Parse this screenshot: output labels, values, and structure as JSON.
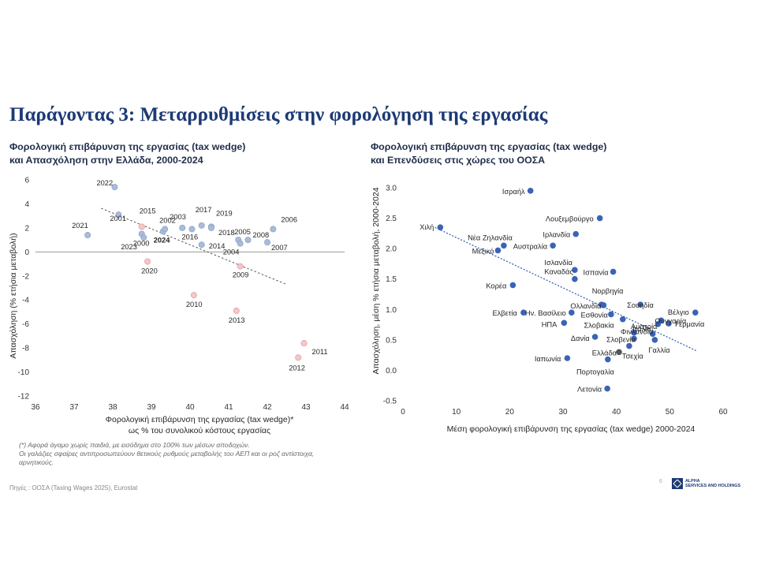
{
  "title": "Παράγοντας 3:  Μεταρρυθμίσεις στην φορολόγηση της εργασίας",
  "left": {
    "subtitle_line1": "Φορολογική επιβάρυνση της εργασίας (tax wedge)",
    "subtitle_line2": "και Απασχόληση στην Ελλάδα, 2000-2024"
  },
  "right": {
    "subtitle_line1": "Φορολογική επιβάρυνση της εργασίας (tax wedge)",
    "subtitle_line2": "και Επενδύσεις στις χώρες του ΟΟΣΑ"
  },
  "note": {
    "line1": "(*) Αφορά άγαμο χωρίς παιδιά, με εισόδημα στο 100% των μέσων αποδοχών.",
    "line2": "Οι γαλάζιες σφαίρες αντιπροσωπεύουν θετικούς ρυθμούς μεταβολής του ΑΕΠ και οι ροζ αντίστοιχα,",
    "line3": "αρνητικούς."
  },
  "source": "Πηγές : ΟΟΣΑ (Taxing Wages 2025), Eurostat",
  "page_number": "6",
  "logo": {
    "line1": "ALPHA",
    "line2": "SERVICES AND HOLDINGS"
  },
  "colors": {
    "title": "#1d3a75",
    "positive_point": "#a9bcd8",
    "negative_point": "#f4c7c9",
    "oecd_point": "#3a64b5",
    "greece_label": "#e0221a",
    "trendline_left": "#555555",
    "trendline_right": "#3a64b5"
  },
  "chart_data": [
    {
      "type": "scatter",
      "xlabel": "Φορολογική επιβάρυνση της εργασίας (tax wedge)*",
      "xlabel_line2": "ως % του συνολικού κόστους εργασίας",
      "ylabel": "Απασχόληση (% ετήσια μεταβολή)",
      "xlim": [
        36,
        44
      ],
      "ylim": [
        -12,
        6
      ],
      "xticks": [
        36,
        37,
        38,
        39,
        40,
        41,
        42,
        43,
        44
      ],
      "yticks": [
        6,
        4,
        2,
        0,
        -2,
        -4,
        -6,
        -8,
        -10,
        -12
      ],
      "trendline": true,
      "points": [
        {
          "label": "2021",
          "x": 37.35,
          "y": 1.4,
          "gdp": "positive"
        },
        {
          "label": "2022",
          "x": 38.05,
          "y": 5.4,
          "gdp": "positive"
        },
        {
          "label": "2001",
          "x": 38.15,
          "y": 3.1,
          "gdp": "positive"
        },
        {
          "label": "2015",
          "x": 38.75,
          "y": 2.1,
          "gdp": "negative"
        },
        {
          "label": "2000",
          "x": 38.75,
          "y": 1.5,
          "gdp": "positive"
        },
        {
          "label": "2023",
          "x": 38.8,
          "y": 1.2,
          "gdp": "positive"
        },
        {
          "label": "2020",
          "x": 38.9,
          "y": -0.8,
          "gdp": "negative"
        },
        {
          "label": "2024",
          "x": 39.3,
          "y": 1.7,
          "gdp": "positive"
        },
        {
          "label": "2002",
          "x": 39.35,
          "y": 1.9,
          "gdp": "positive"
        },
        {
          "label": "2003",
          "x": 39.8,
          "y": 2.0,
          "gdp": "positive"
        },
        {
          "label": "2016",
          "x": 40.05,
          "y": 1.9,
          "gdp": "positive"
        },
        {
          "label": "2017",
          "x": 40.3,
          "y": 2.2,
          "gdp": "positive"
        },
        {
          "label": "2014",
          "x": 40.3,
          "y": 0.6,
          "gdp": "positive"
        },
        {
          "label": "2019",
          "x": 40.55,
          "y": 2.1,
          "gdp": "positive"
        },
        {
          "label": "2018",
          "x": 40.55,
          "y": 2.0,
          "gdp": "positive"
        },
        {
          "label": "2005",
          "x": 41.25,
          "y": 1.0,
          "gdp": "positive"
        },
        {
          "label": "2004",
          "x": 41.3,
          "y": 0.7,
          "gdp": "positive"
        },
        {
          "label": "2008",
          "x": 41.5,
          "y": 1.0,
          "gdp": "positive"
        },
        {
          "label": "2007",
          "x": 42.0,
          "y": 0.8,
          "gdp": "positive"
        },
        {
          "label": "2006",
          "x": 42.15,
          "y": 1.9,
          "gdp": "positive"
        },
        {
          "label": "2010",
          "x": 40.1,
          "y": -3.6,
          "gdp": "negative"
        },
        {
          "label": "2009",
          "x": 41.3,
          "y": -1.2,
          "gdp": "negative"
        },
        {
          "label": "2013",
          "x": 41.2,
          "y": -4.9,
          "gdp": "negative"
        },
        {
          "label": "2011",
          "x": 42.95,
          "y": -7.6,
          "gdp": "negative"
        },
        {
          "label": "2012",
          "x": 42.8,
          "y": -8.8,
          "gdp": "negative"
        }
      ]
    },
    {
      "type": "scatter",
      "xlabel": "Μέση φορολογική επιβάρυνση της εργασίας (tax wedge) 2000-2024",
      "ylabel": "Απασχόληση, μέση % ετήσια μεταβολή, 2000-2024",
      "xlim": [
        0,
        60
      ],
      "ylim": [
        -0.5,
        3.0
      ],
      "xticks": [
        0,
        10,
        20,
        30,
        40,
        50,
        60
      ],
      "yticks": [
        "3.0",
        "2.5",
        "2.0",
        "1.5",
        "1.0",
        "0.5",
        "0.0",
        "-0.5"
      ],
      "trendline": true,
      "points": [
        {
          "label": "Ισραήλ",
          "x": 23.9,
          "y": 2.95
        },
        {
          "label": "Λουξεμβούργο",
          "x": 36.9,
          "y": 2.5
        },
        {
          "label": "Χιλή",
          "x": 7.0,
          "y": 2.35
        },
        {
          "label": "Ιρλανδία",
          "x": 32.4,
          "y": 2.24
        },
        {
          "label": "Νέα Ζηλανδία",
          "x": 18.9,
          "y": 2.05
        },
        {
          "label": "Αυστραλία",
          "x": 28.1,
          "y": 2.05
        },
        {
          "label": "Μεξικό",
          "x": 17.8,
          "y": 1.97
        },
        {
          "label": "Ισλανδία",
          "x": 32.2,
          "y": 1.65
        },
        {
          "label": "Ισπανία",
          "x": 39.4,
          "y": 1.62
        },
        {
          "label": "Καναδάς",
          "x": 32.2,
          "y": 1.5
        },
        {
          "label": "Κορέα",
          "x": 20.6,
          "y": 1.4
        },
        {
          "label": "Νορβηγία",
          "x": 37.2,
          "y": 1.08
        },
        {
          "label": "Ολλανδία",
          "x": 37.6,
          "y": 1.07
        },
        {
          "label": "Σουηδία",
          "x": 44.5,
          "y": 1.08
        },
        {
          "label": "Ελβετία",
          "x": 22.6,
          "y": 0.95
        },
        {
          "label": "Ην. Βασίλειο",
          "x": 31.6,
          "y": 0.95
        },
        {
          "label": "Εσθονία",
          "x": 39.0,
          "y": 0.92
        },
        {
          "label": "Βέλγιο",
          "x": 54.8,
          "y": 0.95
        },
        {
          "label": "Ουγγαρία",
          "x": 48.4,
          "y": 0.82
        },
        {
          "label": "ΗΠΑ",
          "x": 30.2,
          "y": 0.78
        },
        {
          "label": "Σλοβακία",
          "x": 41.2,
          "y": 0.84
        },
        {
          "label": "Αυστρία",
          "x": 47.8,
          "y": 0.76
        },
        {
          "label": "Γερμανία",
          "x": 49.8,
          "y": 0.77
        },
        {
          "label": "Φινλανδία",
          "x": 43.3,
          "y": 0.62
        },
        {
          "label": "Ιταλία",
          "x": 46.8,
          "y": 0.6
        },
        {
          "label": "Δανία",
          "x": 36.0,
          "y": 0.55
        },
        {
          "label": "Σλοβενία",
          "x": 43.3,
          "y": 0.52
        },
        {
          "label": "Γαλλία",
          "x": 47.2,
          "y": 0.5
        },
        {
          "label": "Ελλάδα",
          "x": 40.5,
          "y": 0.3,
          "highlight": true
        },
        {
          "label": "Τσεχία",
          "x": 42.4,
          "y": 0.4
        },
        {
          "label": "Ιαπωνία",
          "x": 30.8,
          "y": 0.2
        },
        {
          "label": "Πορτογαλία",
          "x": 38.4,
          "y": 0.18
        },
        {
          "label": "Λετονία",
          "x": 38.3,
          "y": -0.3
        }
      ]
    }
  ]
}
